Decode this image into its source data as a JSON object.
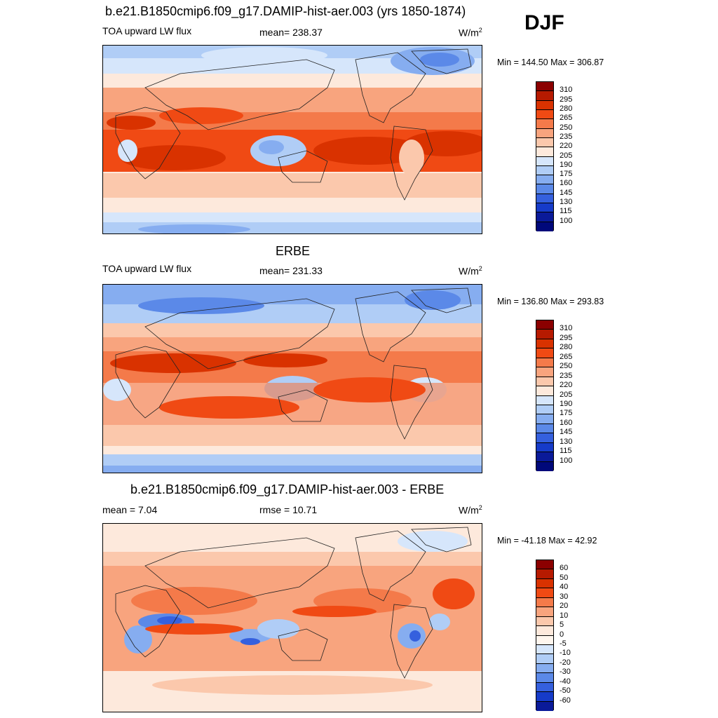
{
  "season": "DJF",
  "panels": [
    {
      "title": "b.e21.B1850cmip6.f09_g17.DAMIP-hist-aer.003 (yrs 1850-1874)",
      "left_label": "TOA upward LW flux",
      "center_label": "mean= 238.37",
      "units": "W/m",
      "units_sup": "2",
      "minmax": "Min = 144.50 Max = 306.87",
      "colorbar_labels": [
        "310",
        "295",
        "280",
        "265",
        "250",
        "235",
        "220",
        "205",
        "190",
        "175",
        "160",
        "145",
        "130",
        "115",
        "100"
      ]
    },
    {
      "title": "ERBE",
      "left_label": "TOA upward LW flux",
      "center_label": "mean= 231.33",
      "units": "W/m",
      "units_sup": "2",
      "minmax": "Min = 136.80 Max = 293.83",
      "colorbar_labels": [
        "310",
        "295",
        "280",
        "265",
        "250",
        "235",
        "220",
        "205",
        "190",
        "175",
        "160",
        "145",
        "130",
        "115",
        "100"
      ]
    },
    {
      "title": "b.e21.B1850cmip6.f09_g17.DAMIP-hist-aer.003 - ERBE",
      "left_label": "mean =   7.04",
      "center_label": "rmse =  10.71",
      "units": "W/m",
      "units_sup": "2",
      "minmax": "Min = -41.18 Max =  42.92",
      "colorbar_labels": [
        "60",
        "50",
        "40",
        "30",
        "20",
        "10",
        "5",
        "0",
        "-5",
        "-10",
        "-20",
        "-30",
        "-40",
        "-50",
        "-60"
      ]
    }
  ],
  "colors": {
    "abs_palette": [
      "#8b0000",
      "#b61a00",
      "#d93200",
      "#f04a14",
      "#f47a4a",
      "#f8a47e",
      "#fbc8ac",
      "#fde9dc",
      "#d6e6fb",
      "#b0cdf6",
      "#86adf0",
      "#5b89e8",
      "#3560de",
      "#163bc9",
      "#0a1a99",
      "#00087a"
    ],
    "diff_palette": [
      "#8b0000",
      "#b61a00",
      "#d93200",
      "#f04a14",
      "#f47a4a",
      "#f8a47e",
      "#fbc8ac",
      "#fde9dc",
      "#fff6ee",
      "#d6e6fb",
      "#b0cdf6",
      "#86adf0",
      "#5b89e8",
      "#3560de",
      "#163bc9",
      "#0a1a99",
      "#00087a"
    ]
  }
}
